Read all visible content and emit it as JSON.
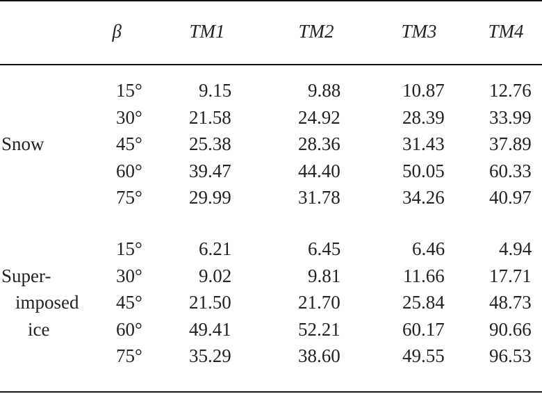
{
  "header": [
    "β",
    "TM1",
    "TM2",
    "TM3",
    "TM4"
  ],
  "groups": [
    {
      "label_lines": [
        "Snow"
      ],
      "rows": [
        [
          "15°",
          "9.15",
          "9.88",
          "10.87",
          "12.76"
        ],
        [
          "30°",
          "21.58",
          "24.92",
          "28.39",
          "33.99"
        ],
        [
          "45°",
          "25.38",
          "28.36",
          "31.43",
          "37.89"
        ],
        [
          "60°",
          "39.47",
          "44.40",
          "50.05",
          "60.33"
        ],
        [
          "75°",
          "29.99",
          "31.78",
          "34.26",
          "40.97"
        ]
      ]
    },
    {
      "label_lines": [
        "Super-",
        "imposed",
        "ice"
      ],
      "rows": [
        [
          "15°",
          "6.21",
          "6.45",
          "6.46",
          "4.94"
        ],
        [
          "30°",
          "9.02",
          "9.81",
          "11.66",
          "17.71"
        ],
        [
          "45°",
          "21.50",
          "21.70",
          "25.84",
          "48.73"
        ],
        [
          "60°",
          "49.41",
          "52.21",
          "60.17",
          "90.66"
        ],
        [
          "75°",
          "35.29",
          "38.60",
          "49.55",
          "96.53"
        ]
      ]
    }
  ]
}
